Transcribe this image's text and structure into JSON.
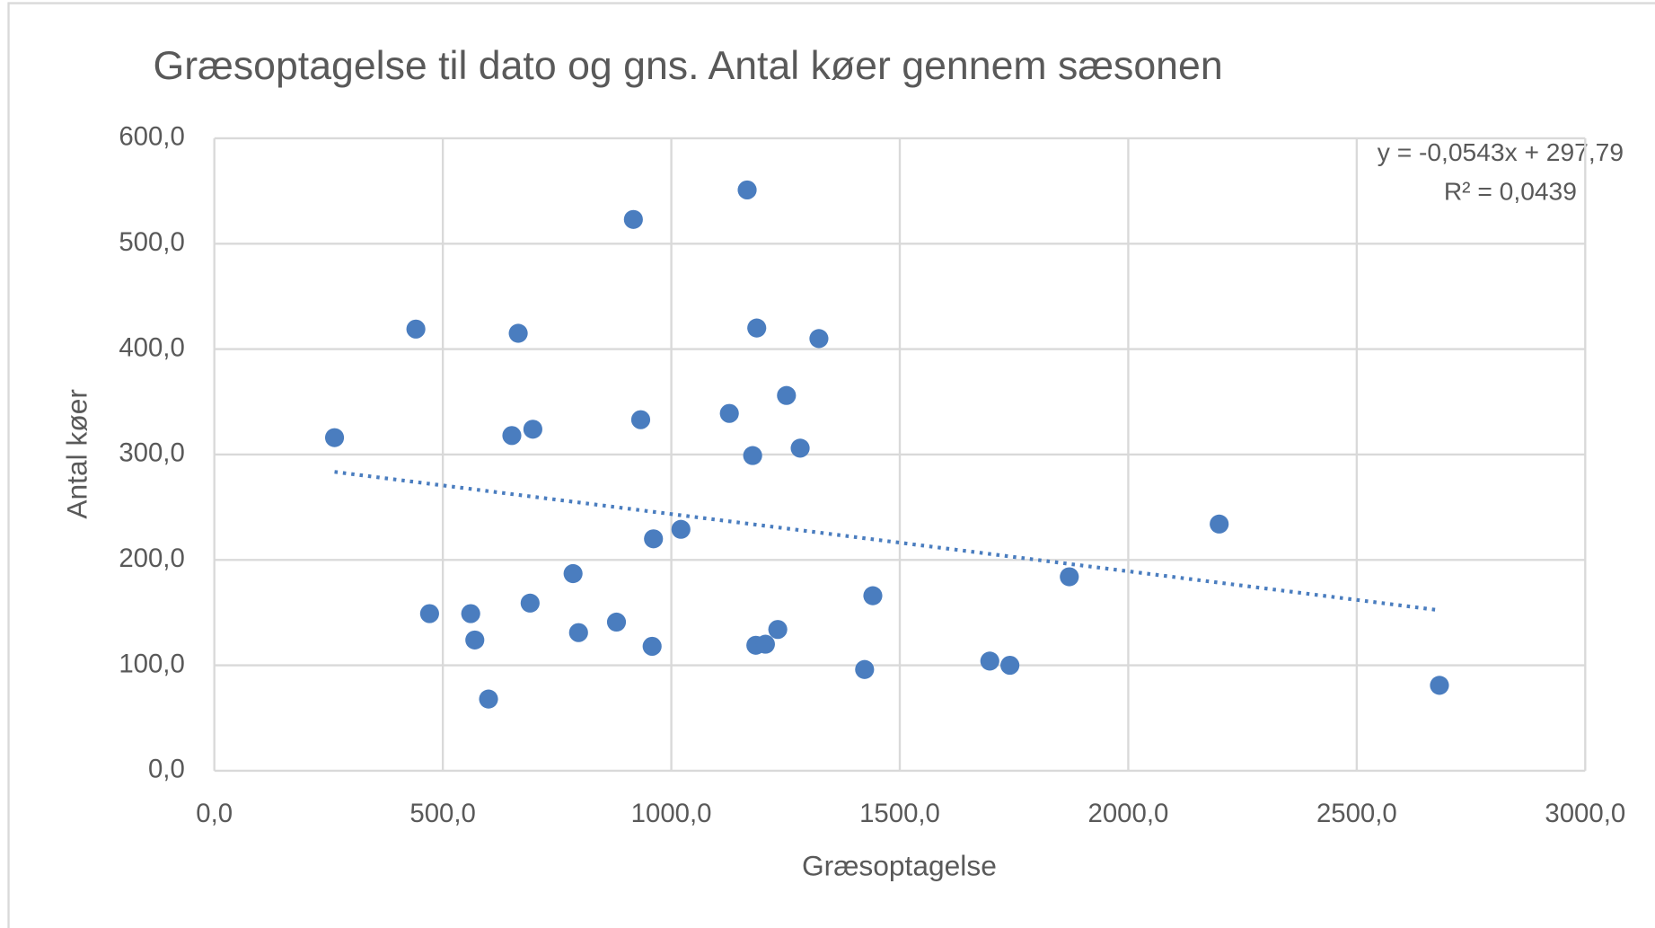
{
  "chart_data": {
    "type": "scatter",
    "title": "Græsoptagelse til dato og gns. Antal køer gennem sæsonen",
    "x_label": "Græsoptagelse",
    "y_label": "Antal køer",
    "color": "#4a7dbf",
    "grid": true,
    "xlim": [
      0,
      3000
    ],
    "ylim": [
      0,
      600
    ],
    "xticks": [
      {
        "value": 0,
        "label": "0,0"
      },
      {
        "value": 500,
        "label": "500,0"
      },
      {
        "value": 1000,
        "label": "1000,0"
      },
      {
        "value": 1500,
        "label": "1500,0"
      },
      {
        "value": 2000,
        "label": "2000,0"
      },
      {
        "value": 2500,
        "label": "2500,0"
      },
      {
        "value": 3000,
        "label": "3000,0"
      }
    ],
    "yticks": [
      {
        "value": 0,
        "label": "0,0"
      },
      {
        "value": 100,
        "label": "100,0"
      },
      {
        "value": 200,
        "label": "200,0"
      },
      {
        "value": 300,
        "label": "300,0"
      },
      {
        "value": 400,
        "label": "400,0"
      },
      {
        "value": 500,
        "label": "500,0"
      },
      {
        "value": 600,
        "label": "600,0"
      }
    ],
    "x": [
      263,
      441,
      471,
      561,
      570,
      600,
      651,
      665,
      691,
      697,
      785,
      797,
      880,
      917,
      933,
      958,
      961,
      1021,
      1127,
      1166,
      1178,
      1185,
      1187,
      1206,
      1233,
      1252,
      1282,
      1323,
      1423,
      1441,
      1697,
      1741,
      1871,
      2199,
      2681
    ],
    "values": [
      316,
      419,
      149,
      149,
      124,
      68,
      318,
      415,
      159,
      324,
      187,
      131,
      141,
      523,
      333,
      118,
      220,
      229,
      339,
      551,
      299,
      119,
      420,
      120,
      134,
      356,
      306,
      410,
      96,
      166,
      104,
      100,
      184,
      234,
      81
    ],
    "trendline": {
      "slope": -0.0543,
      "intercept": 297.79,
      "equation": "y = -0,0543x + 297,79",
      "r2": 0.0439,
      "r2_label": "R² = 0,0439"
    }
  }
}
